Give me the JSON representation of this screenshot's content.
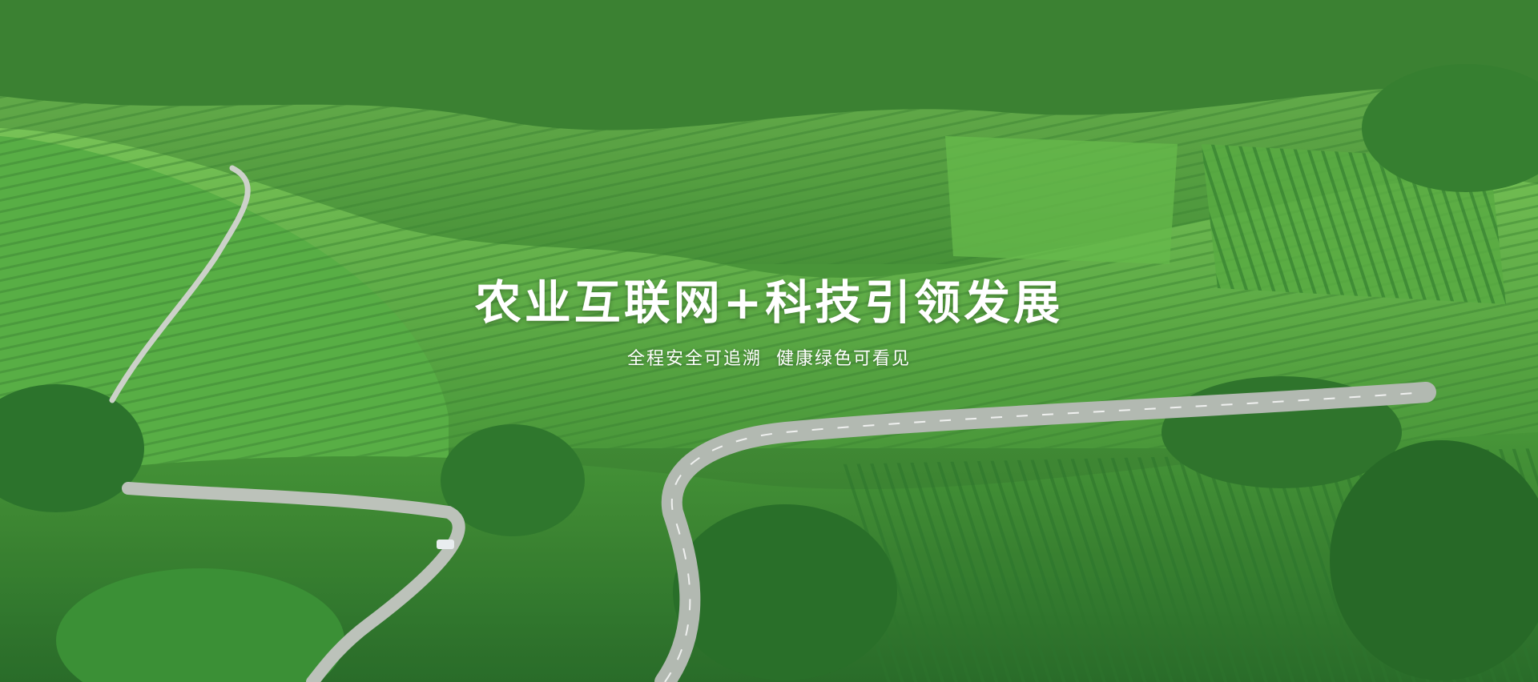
{
  "hero": {
    "headline": "农业互联网+科技引领发展",
    "subline_part1": "全程安全可追溯",
    "subline_part2": "健康绿色可看见"
  },
  "colors": {
    "hill_green": "#3f922e",
    "deep_green": "#1f6b1f",
    "light_green": "#7cc55a",
    "road_gray": "#b7bdb6",
    "text": "#ffffff"
  }
}
